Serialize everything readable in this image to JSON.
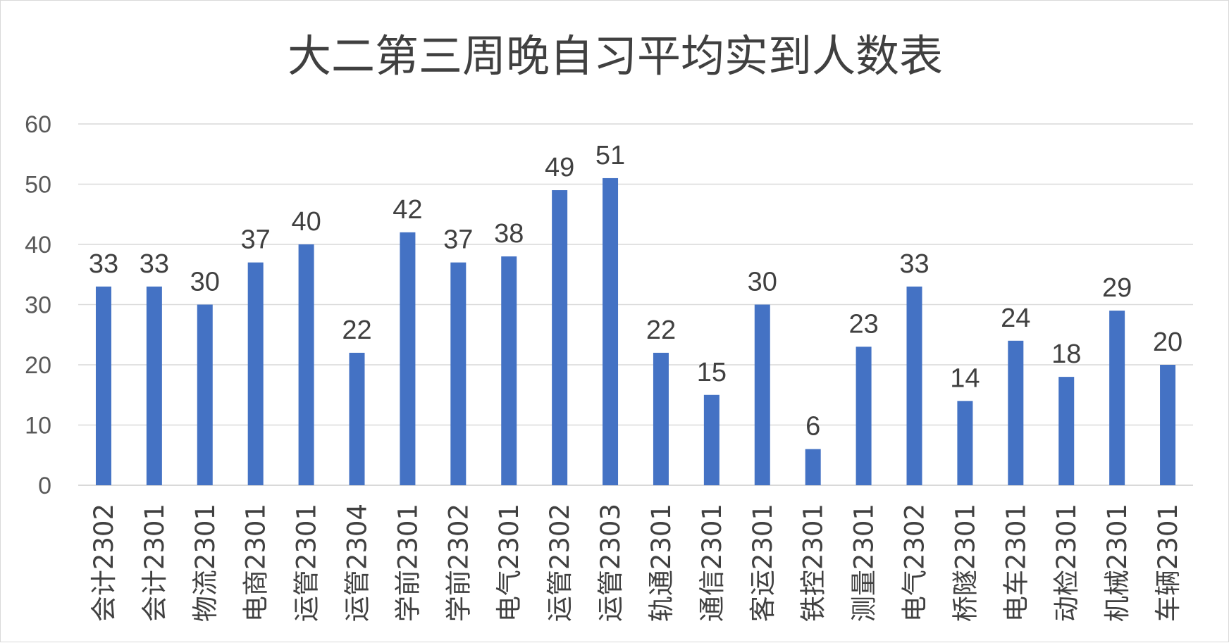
{
  "chart_data": {
    "type": "bar",
    "title": "大二第三周晚自习平均实到人数表",
    "xlabel": "",
    "ylabel": "",
    "categories": [
      "会计2302",
      "会计2301",
      "物流2301",
      "电商2301",
      "运管2301",
      "运管2304",
      "学前2301",
      "学前2302",
      "电气2301",
      "运管2302",
      "运管2303",
      "轨通2301",
      "通信2301",
      "客运2301",
      "铁控2301",
      "测量2301",
      "电气2302",
      "桥隧2301",
      "电车2301",
      "动检2301",
      "机械2301",
      "车辆2301"
    ],
    "values": [
      33,
      33,
      30,
      37,
      40,
      22,
      42,
      37,
      38,
      49,
      51,
      22,
      15,
      30,
      6,
      23,
      33,
      14,
      24,
      18,
      29,
      20
    ],
    "ylim": [
      0,
      60
    ],
    "yticks": [
      0,
      10,
      20,
      30,
      40,
      50,
      60
    ],
    "grid": true,
    "legend": "none",
    "data_labels": true,
    "colors": {
      "bar": "#4472c4",
      "grid": "#d9d9d9",
      "axis": "#d9d9d9",
      "title": "#404040",
      "label": "#404040",
      "tick": "#595959"
    }
  }
}
